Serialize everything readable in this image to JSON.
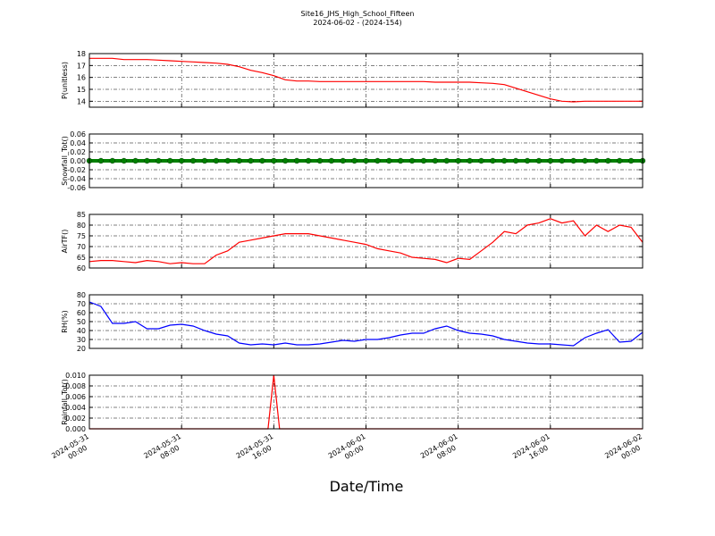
{
  "chart_data": [
    {
      "type": "line",
      "title": "Site16_JHS_High_School_Fifteen",
      "subtitle": "2024-06-02 - (2024-154)",
      "ylabel": "P(unitless)",
      "x": [
        "2024-05-31 00:00",
        "2024-05-31 01:00",
        "2024-05-31 02:00",
        "2024-05-31 03:00",
        "2024-05-31 04:00",
        "2024-05-31 05:00",
        "2024-05-31 06:00",
        "2024-05-31 07:00",
        "2024-05-31 08:00",
        "2024-05-31 09:00",
        "2024-05-31 10:00",
        "2024-05-31 11:00",
        "2024-05-31 12:00",
        "2024-05-31 13:00",
        "2024-05-31 14:00",
        "2024-05-31 15:00",
        "2024-05-31 16:00",
        "2024-05-31 17:00",
        "2024-05-31 18:00",
        "2024-05-31 19:00",
        "2024-05-31 20:00",
        "2024-05-31 21:00",
        "2024-05-31 22:00",
        "2024-05-31 23:00",
        "2024-06-01 00:00",
        "2024-06-01 01:00",
        "2024-06-01 02:00",
        "2024-06-01 03:00",
        "2024-06-01 04:00",
        "2024-06-01 05:00",
        "2024-06-01 06:00",
        "2024-06-01 07:00",
        "2024-06-01 08:00",
        "2024-06-01 09:00",
        "2024-06-01 10:00",
        "2024-06-01 11:00",
        "2024-06-01 12:00",
        "2024-06-01 13:00",
        "2024-06-01 14:00",
        "2024-06-01 15:00",
        "2024-06-01 16:00",
        "2024-06-01 17:00",
        "2024-06-01 18:00",
        "2024-06-01 19:00",
        "2024-06-01 20:00",
        "2024-06-01 21:00",
        "2024-06-01 22:00",
        "2024-06-01 23:00",
        "2024-06-02 00:00"
      ],
      "series": [
        {
          "color": "#ff0000",
          "values": [
            17.6,
            17.6,
            17.6,
            17.5,
            17.5,
            17.5,
            17.45,
            17.4,
            17.35,
            17.3,
            17.25,
            17.2,
            17.1,
            16.9,
            16.6,
            16.4,
            16.15,
            15.8,
            15.7,
            15.7,
            15.65,
            15.65,
            15.65,
            15.65,
            15.65,
            15.65,
            15.65,
            15.65,
            15.65,
            15.65,
            15.6,
            15.6,
            15.6,
            15.6,
            15.55,
            15.5,
            15.4,
            15.1,
            14.8,
            14.5,
            14.2,
            14.0,
            13.95,
            14.0,
            14.0,
            14.0,
            14.0,
            14.0,
            14.0
          ]
        }
      ],
      "xlim": [
        "2024-05-31 00:00",
        "2024-06-02 00:00"
      ],
      "xticks": [
        "2024-05-31 00:00",
        "2024-05-31 08:00",
        "2024-05-31 16:00",
        "2024-06-01 00:00",
        "2024-06-01 08:00",
        "2024-06-01 16:00",
        "2024-06-02 00:00"
      ],
      "ylim": [
        13.5,
        18
      ],
      "yticks": [
        14,
        15,
        16,
        17,
        18
      ],
      "grid": true
    },
    {
      "type": "line",
      "ylabel": "Snowfall_Tot()",
      "markers": true,
      "x": [
        "2024-05-31 00:00",
        "2024-05-31 01:00",
        "2024-05-31 02:00",
        "2024-05-31 03:00",
        "2024-05-31 04:00",
        "2024-05-31 05:00",
        "2024-05-31 06:00",
        "2024-05-31 07:00",
        "2024-05-31 08:00",
        "2024-05-31 09:00",
        "2024-05-31 10:00",
        "2024-05-31 11:00",
        "2024-05-31 12:00",
        "2024-05-31 13:00",
        "2024-05-31 14:00",
        "2024-05-31 15:00",
        "2024-05-31 16:00",
        "2024-05-31 17:00",
        "2024-05-31 18:00",
        "2024-05-31 19:00",
        "2024-05-31 20:00",
        "2024-05-31 21:00",
        "2024-05-31 22:00",
        "2024-05-31 23:00",
        "2024-06-01 00:00",
        "2024-06-01 01:00",
        "2024-06-01 02:00",
        "2024-06-01 03:00",
        "2024-06-01 04:00",
        "2024-06-01 05:00",
        "2024-06-01 06:00",
        "2024-06-01 07:00",
        "2024-06-01 08:00",
        "2024-06-01 09:00",
        "2024-06-01 10:00",
        "2024-06-01 11:00",
        "2024-06-01 12:00",
        "2024-06-01 13:00",
        "2024-06-01 14:00",
        "2024-06-01 15:00",
        "2024-06-01 16:00",
        "2024-06-01 17:00",
        "2024-06-01 18:00",
        "2024-06-01 19:00",
        "2024-06-01 20:00",
        "2024-06-01 21:00",
        "2024-06-01 22:00",
        "2024-06-01 23:00",
        "2024-06-02 00:00"
      ],
      "series": [
        {
          "color": "#008000",
          "values": [
            0,
            0,
            0,
            0,
            0,
            0,
            0,
            0,
            0,
            0,
            0,
            0,
            0,
            0,
            0,
            0,
            0,
            0,
            0,
            0,
            0,
            0,
            0,
            0,
            0,
            0,
            0,
            0,
            0,
            0,
            0,
            0,
            0,
            0,
            0,
            0,
            0,
            0,
            0,
            0,
            0,
            0,
            0,
            0,
            0,
            0,
            0,
            0,
            0
          ]
        }
      ],
      "xlim": [
        "2024-05-31 00:00",
        "2024-06-02 00:00"
      ],
      "xticks": [
        "2024-05-31 00:00",
        "2024-05-31 08:00",
        "2024-05-31 16:00",
        "2024-06-01 00:00",
        "2024-06-01 08:00",
        "2024-06-01 16:00",
        "2024-06-02 00:00"
      ],
      "ylim": [
        -0.06,
        0.06
      ],
      "yticks": [
        -0.06,
        -0.04,
        -0.02,
        {
          "value": 0,
          "label": "0.00"
        },
        0.02,
        0.04,
        0.06
      ],
      "grid": true
    },
    {
      "type": "line",
      "ylabel": "AirTF()",
      "x": [
        "2024-05-31 00:00",
        "2024-05-31 01:00",
        "2024-05-31 02:00",
        "2024-05-31 03:00",
        "2024-05-31 04:00",
        "2024-05-31 05:00",
        "2024-05-31 06:00",
        "2024-05-31 07:00",
        "2024-05-31 08:00",
        "2024-05-31 09:00",
        "2024-05-31 10:00",
        "2024-05-31 11:00",
        "2024-05-31 12:00",
        "2024-05-31 13:00",
        "2024-05-31 14:00",
        "2024-05-31 15:00",
        "2024-05-31 16:00",
        "2024-05-31 17:00",
        "2024-05-31 18:00",
        "2024-05-31 19:00",
        "2024-05-31 20:00",
        "2024-05-31 21:00",
        "2024-05-31 22:00",
        "2024-05-31 23:00",
        "2024-06-01 00:00",
        "2024-06-01 01:00",
        "2024-06-01 02:00",
        "2024-06-01 03:00",
        "2024-06-01 04:00",
        "2024-06-01 05:00",
        "2024-06-01 06:00",
        "2024-06-01 07:00",
        "2024-06-01 08:00",
        "2024-06-01 09:00",
        "2024-06-01 10:00",
        "2024-06-01 11:00",
        "2024-06-01 12:00",
        "2024-06-01 13:00",
        "2024-06-01 14:00",
        "2024-06-01 15:00",
        "2024-06-01 16:00",
        "2024-06-01 17:00",
        "2024-06-01 18:00",
        "2024-06-01 19:00",
        "2024-06-01 20:00",
        "2024-06-01 21:00",
        "2024-06-01 22:00",
        "2024-06-01 23:00",
        "2024-06-02 00:00"
      ],
      "series": [
        {
          "color": "#ff0000",
          "values": [
            63,
            63.5,
            63.5,
            63,
            62.5,
            63.5,
            63,
            62,
            62.5,
            62,
            62,
            66,
            68,
            72,
            73,
            74,
            75,
            76,
            76,
            76,
            75,
            74,
            73,
            72,
            71,
            69,
            68,
            67,
            65,
            64.5,
            64,
            62.5,
            64.5,
            64,
            68,
            72,
            77,
            76,
            80,
            81,
            83,
            81,
            82,
            75,
            80,
            77,
            80,
            79,
            72
          ]
        }
      ],
      "xlim": [
        "2024-05-31 00:00",
        "2024-06-02 00:00"
      ],
      "xticks": [
        "2024-05-31 00:00",
        "2024-05-31 08:00",
        "2024-05-31 16:00",
        "2024-06-01 00:00",
        "2024-06-01 08:00",
        "2024-06-01 16:00",
        "2024-06-02 00:00"
      ],
      "ylim": [
        60,
        85
      ],
      "yticks": [
        60,
        65,
        70,
        75,
        80,
        85
      ],
      "grid": true
    },
    {
      "type": "line",
      "ylabel": "RH(%)",
      "x": [
        "2024-05-31 00:00",
        "2024-05-31 01:00",
        "2024-05-31 02:00",
        "2024-05-31 03:00",
        "2024-05-31 04:00",
        "2024-05-31 05:00",
        "2024-05-31 06:00",
        "2024-05-31 07:00",
        "2024-05-31 08:00",
        "2024-05-31 09:00",
        "2024-05-31 10:00",
        "2024-05-31 11:00",
        "2024-05-31 12:00",
        "2024-05-31 13:00",
        "2024-05-31 14:00",
        "2024-05-31 15:00",
        "2024-05-31 16:00",
        "2024-05-31 17:00",
        "2024-05-31 18:00",
        "2024-05-31 19:00",
        "2024-05-31 20:00",
        "2024-05-31 21:00",
        "2024-05-31 22:00",
        "2024-05-31 23:00",
        "2024-06-01 00:00",
        "2024-06-01 01:00",
        "2024-06-01 02:00",
        "2024-06-01 03:00",
        "2024-06-01 04:00",
        "2024-06-01 05:00",
        "2024-06-01 06:00",
        "2024-06-01 07:00",
        "2024-06-01 08:00",
        "2024-06-01 09:00",
        "2024-06-01 10:00",
        "2024-06-01 11:00",
        "2024-06-01 12:00",
        "2024-06-01 13:00",
        "2024-06-01 14:00",
        "2024-06-01 15:00",
        "2024-06-01 16:00",
        "2024-06-01 17:00",
        "2024-06-01 18:00",
        "2024-06-01 19:00",
        "2024-06-01 20:00",
        "2024-06-01 21:00",
        "2024-06-01 22:00",
        "2024-06-01 23:00",
        "2024-06-02 00:00"
      ],
      "series": [
        {
          "color": "#0000ff",
          "values": [
            72,
            67,
            48,
            48,
            50,
            42,
            42,
            46,
            47,
            45,
            40,
            36,
            34,
            26,
            24,
            25,
            24,
            26,
            24,
            24,
            25,
            27,
            29,
            28,
            30,
            30,
            32,
            35,
            37,
            37,
            42,
            45,
            40,
            37,
            36,
            34,
            30,
            28,
            26,
            25,
            25,
            24,
            23,
            32,
            37,
            41,
            27,
            28,
            38
          ]
        }
      ],
      "xlim": [
        "2024-05-31 00:00",
        "2024-06-02 00:00"
      ],
      "xticks": [
        "2024-05-31 00:00",
        "2024-05-31 08:00",
        "2024-05-31 16:00",
        "2024-06-01 00:00",
        "2024-06-01 08:00",
        "2024-06-01 16:00",
        "2024-06-02 00:00"
      ],
      "ylim": [
        20,
        80
      ],
      "yticks": [
        20,
        30,
        40,
        50,
        60,
        70,
        80
      ],
      "grid": true
    },
    {
      "type": "line",
      "ylabel": "Rainfall_Tot()",
      "xlabel": "Date/Time",
      "x": [
        "2024-05-31 00:00",
        "2024-05-31 15:30",
        "2024-05-31 16:00",
        "2024-05-31 16:30",
        "2024-06-02 00:00"
      ],
      "series": [
        {
          "color": "#ff0000",
          "values": [
            0,
            0,
            0.01,
            0,
            0
          ]
        }
      ],
      "xlim": [
        "2024-05-31 00:00",
        "2024-06-02 00:00"
      ],
      "xticks": [
        "2024-05-31 00:00",
        "2024-05-31 08:00",
        "2024-05-31 16:00",
        "2024-06-01 00:00",
        "2024-06-01 08:00",
        "2024-06-01 16:00",
        "2024-06-02 00:00"
      ],
      "ylim": [
        0,
        0.01
      ],
      "yticks": [
        {
          "value": 0,
          "label": "0.000"
        },
        0.002,
        0.004,
        0.006,
        0.008,
        {
          "value": 0.01,
          "label": "0.010"
        }
      ],
      "grid": true
    }
  ]
}
